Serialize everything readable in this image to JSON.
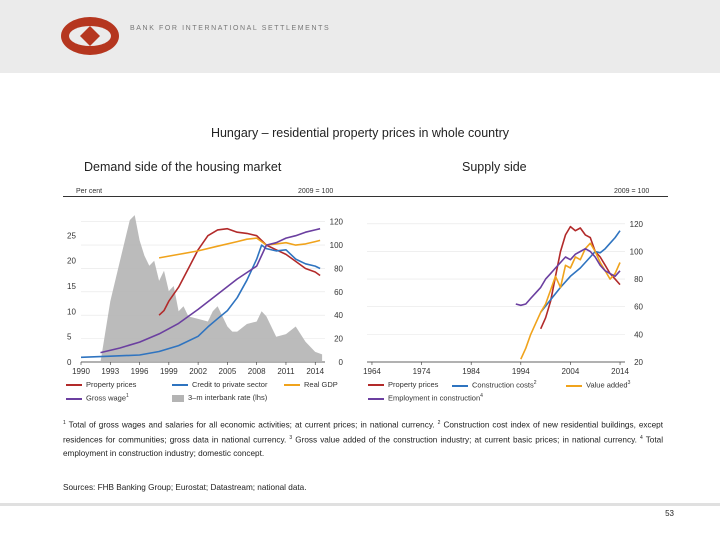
{
  "header": {
    "bank_name": "BANK FOR INTERNATIONAL SETTLEMENTS"
  },
  "title": "Hungary – residential property prices in whole country",
  "left_panel": {
    "subtitle": "Demand side of the housing market",
    "unit_left": "Per cent",
    "unit_right": "2009 = 100"
  },
  "right_panel": {
    "subtitle": "Supply side",
    "unit_right": "2009 = 100"
  },
  "legend_left": {
    "property_prices": "Property prices",
    "credit": "Credit to private sector",
    "real_gdp": "Real GDP",
    "gross_wage": "Gross wage",
    "gross_wage_note": "1",
    "interbank": "3–m interbank rate (lhs)"
  },
  "legend_right": {
    "property_prices": "Property prices",
    "construction_costs": "Construction costs",
    "construction_costs_note": "2",
    "value_added": "Value added",
    "value_added_note": "3",
    "employment": "Employment in construction",
    "employment_note": "4"
  },
  "footnotes": {
    "n1_mark": "1",
    "n1": "Total of gross wages and salaries for all economic activities; at current prices; in national currency.",
    "n2_mark": "2",
    "n2": "Construction cost index of new residential buildings, except residences for communities; gross data in national currency.",
    "n3_mark": "3",
    "n3": "Gross value added of the construction industry; at current basic prices; in national currency.",
    "n4_mark": "4",
    "n4": "Total employment in construction industry; domestic concept."
  },
  "sources": "Sources: FHB Banking Group; Eurostat; Datastream; national data.",
  "page_number": "53",
  "colors": {
    "property": "#b22a2a",
    "credit": "#2f74c0",
    "gdp": "#f0a31c",
    "wage": "#6b3fa0",
    "interbank": "#b4b4b4",
    "employment": "#6b3fa0"
  },
  "chart_data": [
    {
      "type": "line",
      "title": "Demand side of the housing market",
      "x_ticks": [
        "1990",
        "1993",
        "1996",
        "1999",
        "2002",
        "2005",
        "2008",
        "2011",
        "2014"
      ],
      "xlim": [
        1990,
        2015
      ],
      "y_left": {
        "label": "Per cent",
        "lim": [
          0,
          30
        ],
        "ticks": [
          0,
          5,
          10,
          15,
          20,
          25
        ]
      },
      "y_right": {
        "label": "2009 = 100",
        "lim": [
          0,
          130
        ],
        "ticks": [
          0,
          20,
          40,
          60,
          80,
          100,
          120
        ]
      },
      "series": [
        {
          "name": "3–m interbank rate (lhs)",
          "axis": "left",
          "style": "area",
          "color_key": "interbank",
          "points": [
            [
              1990,
              0
            ],
            [
              1992,
              0
            ],
            [
              1993,
              12
            ],
            [
              1994,
              20
            ],
            [
              1995,
              28
            ],
            [
              1995.5,
              29
            ],
            [
              1996,
              24
            ],
            [
              1996.5,
              21
            ],
            [
              1997,
              19
            ],
            [
              1997.5,
              20
            ],
            [
              1998,
              16
            ],
            [
              1998.5,
              18
            ],
            [
              1999,
              14
            ],
            [
              1999.5,
              15
            ],
            [
              2000,
              10
            ],
            [
              2000.5,
              11
            ],
            [
              2001,
              9
            ],
            [
              2002,
              8.5
            ],
            [
              2003,
              8
            ],
            [
              2003.5,
              10
            ],
            [
              2004,
              11
            ],
            [
              2005,
              7
            ],
            [
              2005.5,
              6
            ],
            [
              2006,
              6
            ],
            [
              2007,
              7.5
            ],
            [
              2008,
              8
            ],
            [
              2008.5,
              10
            ],
            [
              2009,
              9
            ],
            [
              2010,
              5
            ],
            [
              2011,
              5.5
            ],
            [
              2012,
              7
            ],
            [
              2013,
              4
            ],
            [
              2014,
              2
            ],
            [
              2014.7,
              1.5
            ],
            [
              2014.7,
              0
            ]
          ]
        },
        {
          "name": "Property prices",
          "axis": "right",
          "color_key": "property",
          "points": [
            [
              1998,
              40
            ],
            [
              1998.5,
              44
            ],
            [
              1999,
              52
            ],
            [
              2000,
              64
            ],
            [
              2001,
              80
            ],
            [
              2002,
              96
            ],
            [
              2003,
              108
            ],
            [
              2004,
              113
            ],
            [
              2005,
              114
            ],
            [
              2006,
              111
            ],
            [
              2007,
              110
            ],
            [
              2008,
              108
            ],
            [
              2009,
              100
            ],
            [
              2010,
              96
            ],
            [
              2011,
              92
            ],
            [
              2012,
              86
            ],
            [
              2013,
              80
            ],
            [
              2014,
              77
            ],
            [
              2014.5,
              74
            ]
          ]
        },
        {
          "name": "Credit to private sector",
          "axis": "right",
          "color_key": "credit",
          "points": [
            [
              1990,
              4
            ],
            [
              1993,
              5
            ],
            [
              1996,
              6
            ],
            [
              1998,
              9
            ],
            [
              2000,
              14
            ],
            [
              2002,
              22
            ],
            [
              2003,
              30
            ],
            [
              2004,
              37
            ],
            [
              2005,
              44
            ],
            [
              2006,
              55
            ],
            [
              2007,
              70
            ],
            [
              2008,
              88
            ],
            [
              2008.5,
              100
            ],
            [
              2009,
              97
            ],
            [
              2010,
              95
            ],
            [
              2011,
              96
            ],
            [
              2012,
              88
            ],
            [
              2013,
              84
            ],
            [
              2014,
              82
            ],
            [
              2014.5,
              80
            ]
          ]
        },
        {
          "name": "Real GDP",
          "axis": "right",
          "color_key": "gdp",
          "points": [
            [
              1998,
              89
            ],
            [
              2000,
              92
            ],
            [
              2002,
              95
            ],
            [
              2004,
              99
            ],
            [
              2006,
              103
            ],
            [
              2007,
              105
            ],
            [
              2008,
              106
            ],
            [
              2009,
              100
            ],
            [
              2010,
              101
            ],
            [
              2011,
              102
            ],
            [
              2012,
              100
            ],
            [
              2013,
              101
            ],
            [
              2014,
              103
            ],
            [
              2014.5,
              104
            ]
          ]
        },
        {
          "name": "Gross wage",
          "axis": "right",
          "color_key": "wage",
          "points": [
            [
              1992,
              8
            ],
            [
              1994,
              12
            ],
            [
              1996,
              17
            ],
            [
              1998,
              24
            ],
            [
              2000,
              33
            ],
            [
              2002,
              45
            ],
            [
              2004,
              58
            ],
            [
              2006,
              71
            ],
            [
              2008,
              82
            ],
            [
              2009,
              100
            ],
            [
              2010,
              102
            ],
            [
              2011,
              106
            ],
            [
              2012,
              108
            ],
            [
              2013,
              111
            ],
            [
              2014,
              113
            ],
            [
              2014.5,
              114
            ]
          ]
        }
      ]
    },
    {
      "type": "line",
      "title": "Supply side",
      "x_ticks": [
        "1964",
        "1974",
        "1984",
        "1994",
        "2004",
        "2014"
      ],
      "xlim": [
        1963,
        2015
      ],
      "y_right": {
        "label": "2009 = 100",
        "lim": [
          20,
          130
        ],
        "ticks": [
          20,
          40,
          60,
          80,
          100,
          120
        ]
      },
      "series": [
        {
          "name": "Property prices",
          "axis": "right",
          "color_key": "property",
          "points": [
            [
              1998,
              44
            ],
            [
              1999,
              52
            ],
            [
              2000,
              64
            ],
            [
              2001,
              82
            ],
            [
              2002,
              100
            ],
            [
              2003,
              112
            ],
            [
              2004,
              118
            ],
            [
              2005,
              115
            ],
            [
              2006,
              117
            ],
            [
              2007,
              112
            ],
            [
              2008,
              110
            ],
            [
              2009,
              100
            ],
            [
              2010,
              96
            ],
            [
              2011,
              90
            ],
            [
              2012,
              84
            ],
            [
              2013,
              80
            ],
            [
              2014,
              76
            ]
          ]
        },
        {
          "name": "Construction costs",
          "axis": "right",
          "color_key": "credit",
          "points": [
            [
              1998,
              56
            ],
            [
              2000,
              65
            ],
            [
              2002,
              74
            ],
            [
              2004,
              82
            ],
            [
              2006,
              88
            ],
            [
              2008,
              96
            ],
            [
              2009,
              100
            ],
            [
              2010,
              99
            ],
            [
              2011,
              102
            ],
            [
              2012,
              106
            ],
            [
              2013,
              110
            ],
            [
              2014,
              115
            ]
          ]
        },
        {
          "name": "Value added",
          "axis": "right",
          "color_key": "gdp",
          "points": [
            [
              1994,
              22
            ],
            [
              1995,
              30
            ],
            [
              1996,
              40
            ],
            [
              1997,
              48
            ],
            [
              1998,
              56
            ],
            [
              1999,
              62
            ],
            [
              2000,
              72
            ],
            [
              2001,
              82
            ],
            [
              2002,
              74
            ],
            [
              2003,
              90
            ],
            [
              2004,
              88
            ],
            [
              2005,
              96
            ],
            [
              2006,
              94
            ],
            [
              2007,
              102
            ],
            [
              2008,
              106
            ],
            [
              2009,
              100
            ],
            [
              2010,
              92
            ],
            [
              2011,
              86
            ],
            [
              2012,
              80
            ],
            [
              2013,
              84
            ],
            [
              2014,
              92
            ]
          ]
        },
        {
          "name": "Employment in construction",
          "axis": "right",
          "color_key": "employment",
          "points": [
            [
              1993,
              62
            ],
            [
              1994,
              61
            ],
            [
              1995,
              62
            ],
            [
              1996,
              66
            ],
            [
              1997,
              70
            ],
            [
              1998,
              74
            ],
            [
              1999,
              80
            ],
            [
              2000,
              84
            ],
            [
              2001,
              88
            ],
            [
              2002,
              92
            ],
            [
              2003,
              96
            ],
            [
              2004,
              94
            ],
            [
              2005,
              98
            ],
            [
              2006,
              100
            ],
            [
              2007,
              102
            ],
            [
              2008,
              100
            ],
            [
              2009,
              96
            ],
            [
              2010,
              90
            ],
            [
              2011,
              86
            ],
            [
              2012,
              84
            ],
            [
              2013,
              82
            ],
            [
              2014,
              86
            ]
          ]
        }
      ]
    }
  ]
}
